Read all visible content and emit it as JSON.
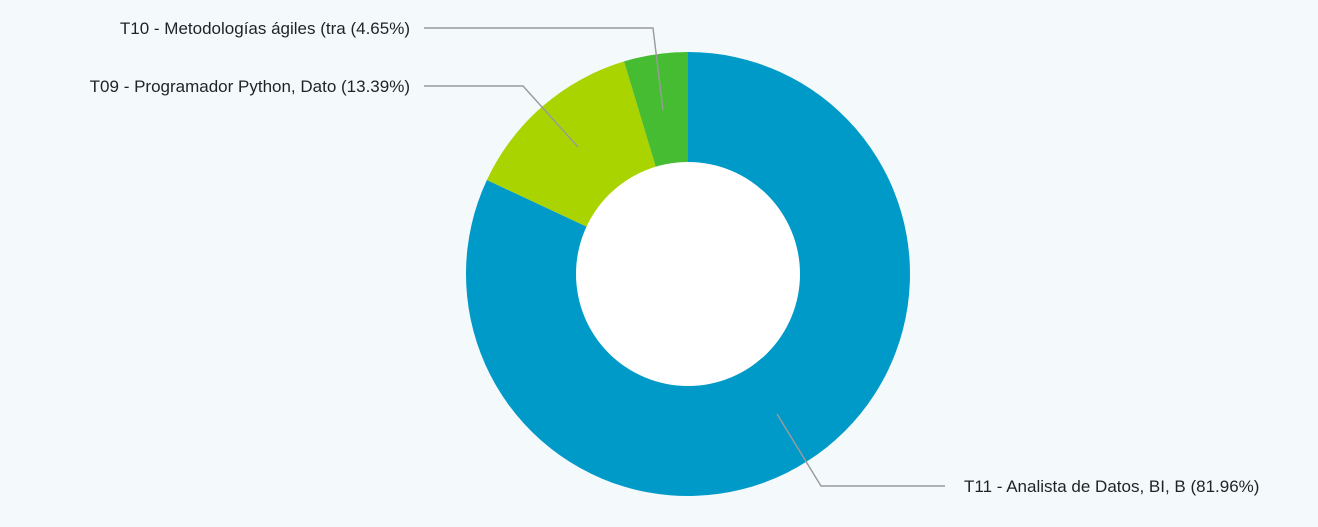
{
  "chart_data": {
    "type": "pie",
    "donut": true,
    "title": "",
    "legend": "none",
    "slices": [
      {
        "label": "T11 - Analista de Datos, BI, B",
        "value": 81.96,
        "display": "T11 - Analista de Datos, BI, B (81.96%)",
        "color": "#009ac9"
      },
      {
        "label": "T09 - Programador Python, Dato",
        "value": 13.39,
        "display": "T09 - Programador Python, Dato (13.39%)",
        "color": "#aad400"
      },
      {
        "label": "T10 - Metodologías ágiles (tra",
        "value": 4.65,
        "display": "T10 - Metodologías ágiles (tra (4.65%)",
        "color": "#45bc31"
      }
    ]
  }
}
